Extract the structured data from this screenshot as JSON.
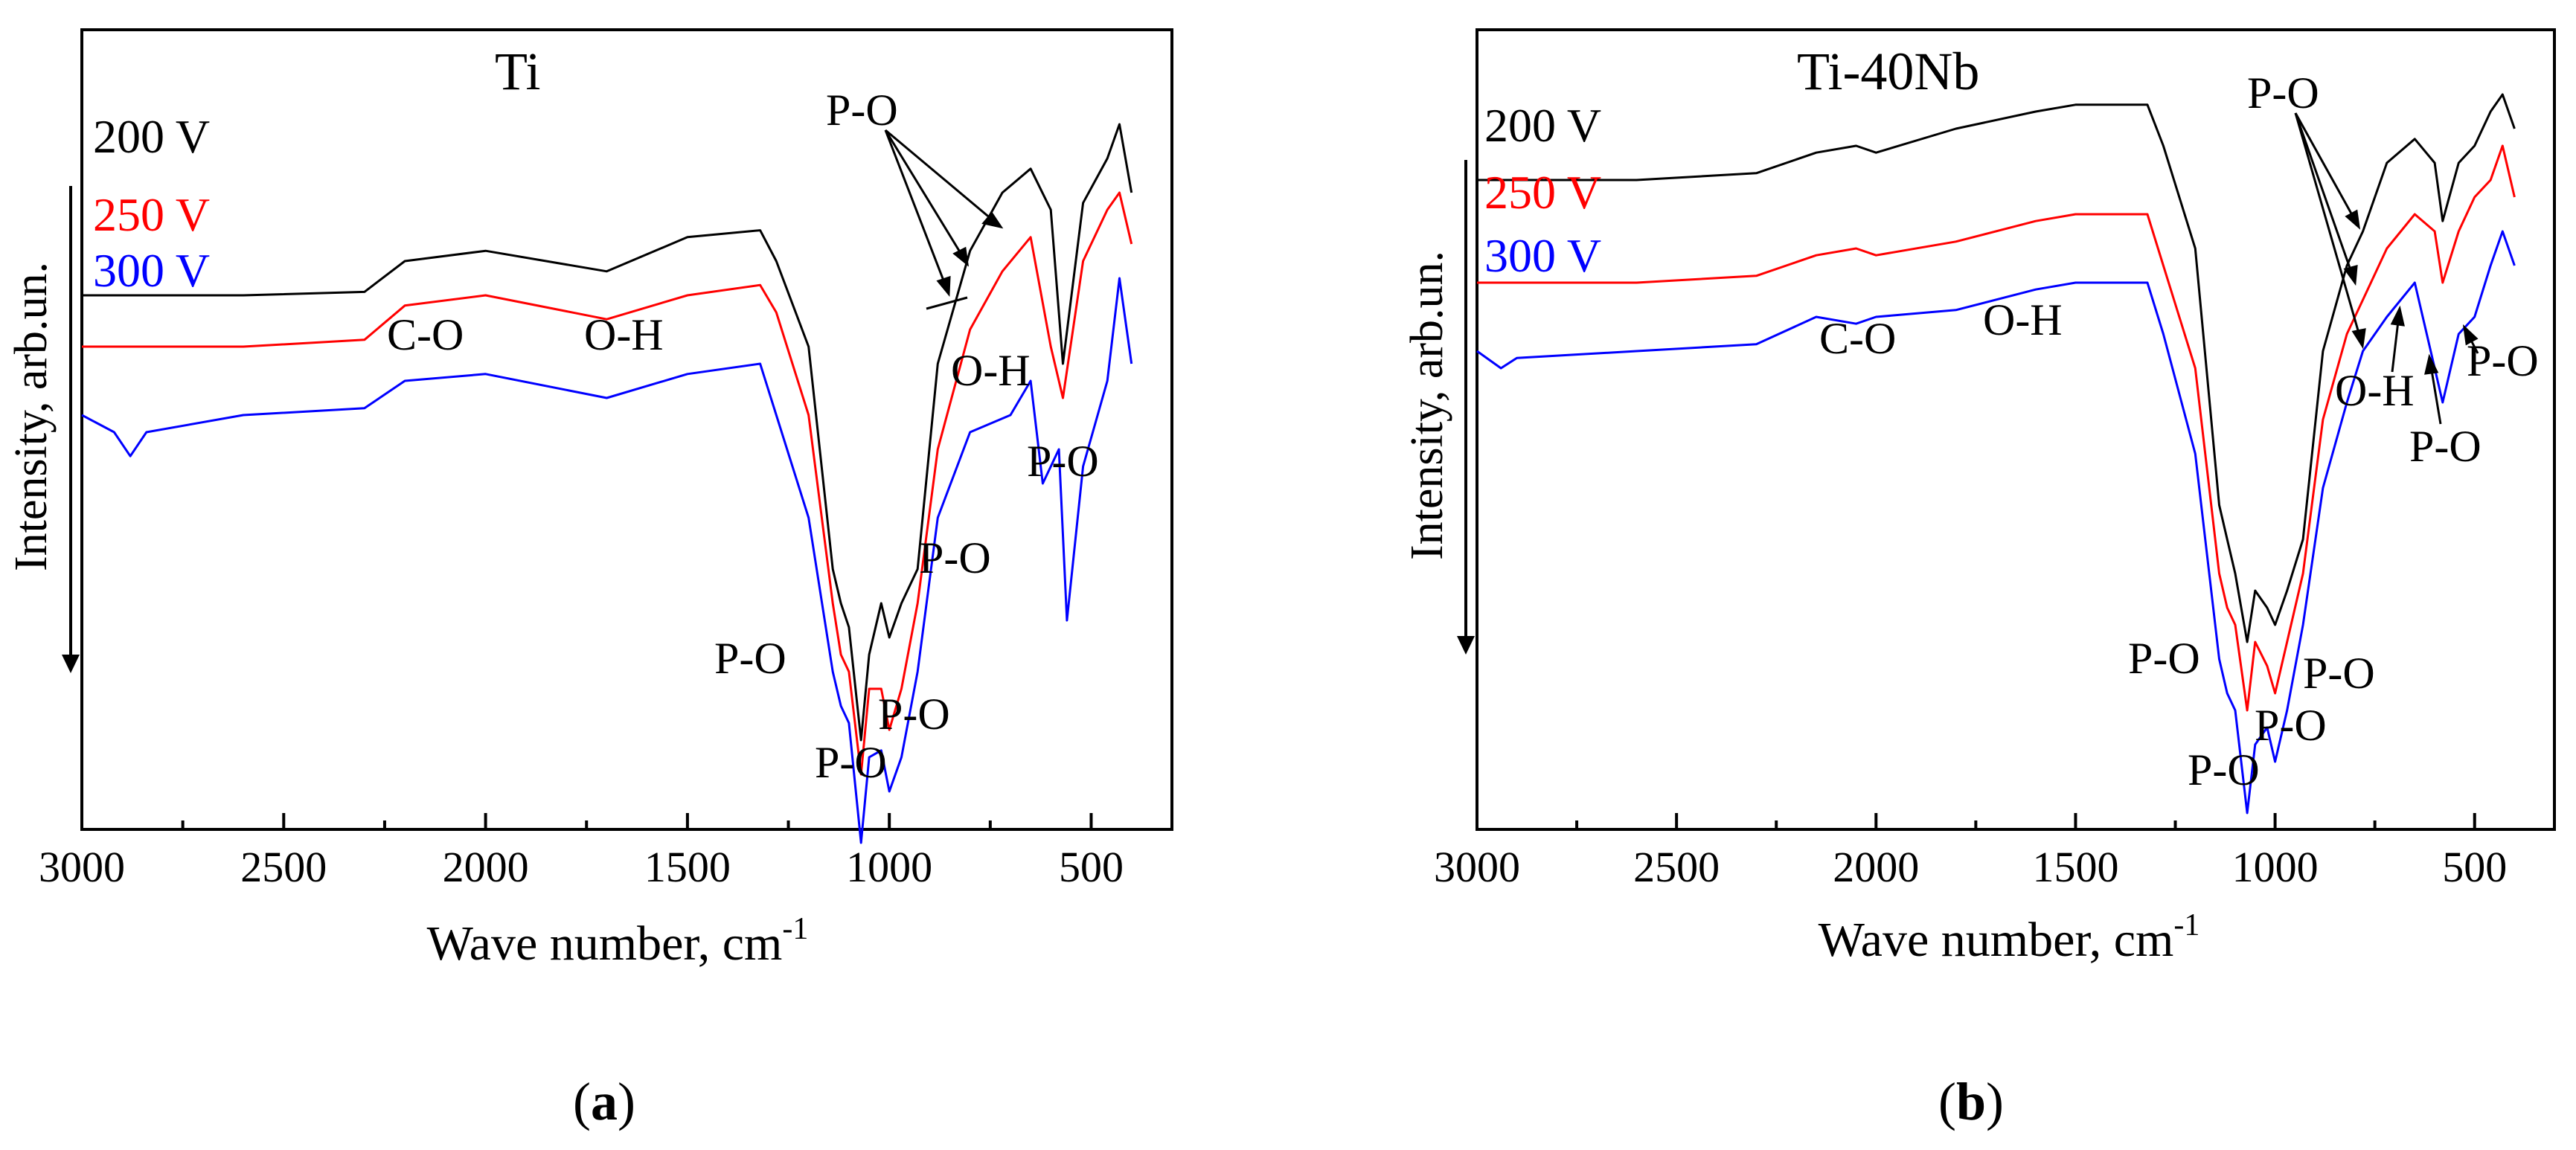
{
  "chart_data": [
    {
      "type": "line",
      "panel_label": "a",
      "title": "Ti",
      "xlabel": "Wave number, cm",
      "xlabel_sup": "-1",
      "ylabel": "Intensity, arb.un.",
      "xlim": [
        3000,
        300
      ],
      "x_ticks": [
        "3000",
        "2500",
        "2000",
        "1500",
        "1000",
        "500"
      ],
      "x_tick_values": [
        3000,
        2500,
        2000,
        1500,
        1000,
        500
      ],
      "y_ticks_shown": false,
      "y_direction_arrow": "down",
      "series": [
        {
          "name": "200 V",
          "color": "#000000",
          "x": [
            3000,
            2600,
            2300,
            2200,
            2000,
            1700,
            1500,
            1320,
            1280,
            1200,
            1140,
            1120,
            1100,
            1070,
            1050,
            1020,
            1000,
            970,
            930,
            880,
            800,
            720,
            650,
            600,
            570,
            520,
            460,
            430,
            400
          ],
          "y": [
            0.5,
            0.5,
            0.6,
            1.5,
            1.8,
            1.2,
            2.2,
            2.4,
            1.5,
            -1.0,
            -7.5,
            -8.5,
            -9.2,
            -12.5,
            -10.0,
            -8.5,
            -9.5,
            -8.5,
            -7.5,
            -1.5,
            1.8,
            3.5,
            4.2,
            3.0,
            -1.5,
            3.2,
            4.5,
            5.5,
            3.5
          ]
        },
        {
          "name": "250 V",
          "color": "#ff0000",
          "x": [
            3000,
            2600,
            2300,
            2200,
            2000,
            1700,
            1500,
            1320,
            1280,
            1200,
            1140,
            1120,
            1100,
            1070,
            1050,
            1020,
            1000,
            970,
            930,
            880,
            800,
            720,
            650,
            600,
            570,
            520,
            460,
            430,
            400
          ],
          "y": [
            -1.0,
            -1.0,
            -0.8,
            0.2,
            0.5,
            -0.2,
            0.5,
            0.8,
            0.0,
            -3.0,
            -8.5,
            -10.0,
            -10.5,
            -13.5,
            -11.0,
            -11.0,
            -12.2,
            -11.0,
            -8.5,
            -4.0,
            -0.5,
            1.2,
            2.2,
            -1.0,
            -2.5,
            1.5,
            3.0,
            3.5,
            2.0
          ]
        },
        {
          "name": "300 V",
          "color": "#0000ff",
          "x": [
            3000,
            2920,
            2880,
            2840,
            2600,
            2300,
            2200,
            2000,
            1700,
            1500,
            1320,
            1280,
            1200,
            1140,
            1120,
            1100,
            1070,
            1050,
            1020,
            1000,
            970,
            930,
            880,
            800,
            700,
            650,
            620,
            580,
            560,
            520,
            460,
            430,
            400
          ],
          "y": [
            -3.0,
            -3.5,
            -4.2,
            -3.5,
            -3.0,
            -2.8,
            -2.0,
            -1.8,
            -2.5,
            -1.8,
            -1.5,
            -3.0,
            -6.0,
            -10.5,
            -11.5,
            -12.0,
            -15.5,
            -13.0,
            -12.8,
            -14.0,
            -13.0,
            -10.5,
            -6.0,
            -3.5,
            -3.0,
            -2.0,
            -5.0,
            -4.0,
            -9.0,
            -4.5,
            -2.0,
            1.0,
            -1.5
          ]
        }
      ],
      "annotations": [
        "P-O",
        "C-O",
        "O-H",
        "O-H",
        "P-O",
        "P-O",
        "P-O",
        "P-O",
        "P-O"
      ]
    },
    {
      "type": "line",
      "panel_label": "b",
      "title": "Ti-40Nb",
      "xlabel": "Wave number, cm",
      "xlabel_sup": "-1",
      "ylabel": "Intensity, arb.un.",
      "xlim": [
        3000,
        300
      ],
      "x_ticks": [
        "3000",
        "2500",
        "2000",
        "1500",
        "1000",
        "500"
      ],
      "x_tick_values": [
        3000,
        2500,
        2000,
        1500,
        1000,
        500
      ],
      "y_ticks_shown": false,
      "y_direction_arrow": "down",
      "series": [
        {
          "name": "200 V",
          "color": "#000000",
          "x": [
            3000,
            2600,
            2300,
            2150,
            2050,
            2000,
            1800,
            1600,
            1500,
            1320,
            1280,
            1200,
            1140,
            1120,
            1100,
            1070,
            1050,
            1020,
            1000,
            970,
            930,
            880,
            820,
            780,
            720,
            650,
            600,
            580,
            540,
            500,
            460,
            430,
            400
          ],
          "y": [
            3.0,
            3.0,
            3.2,
            3.8,
            4.0,
            3.8,
            4.5,
            5.0,
            5.2,
            5.2,
            4.0,
            1.0,
            -6.5,
            -7.5,
            -8.5,
            -10.5,
            -9.0,
            -9.5,
            -10.0,
            -9.0,
            -7.5,
            -2.0,
            0.5,
            1.5,
            3.5,
            4.2,
            3.5,
            1.8,
            3.5,
            4.0,
            5.0,
            5.5,
            4.5
          ]
        },
        {
          "name": "250 V",
          "color": "#ff0000",
          "x": [
            3000,
            2600,
            2300,
            2150,
            2050,
            2000,
            1800,
            1600,
            1500,
            1320,
            1280,
            1200,
            1140,
            1120,
            1100,
            1070,
            1050,
            1020,
            1000,
            970,
            930,
            880,
            820,
            780,
            720,
            650,
            600,
            580,
            540,
            500,
            460,
            430,
            400
          ],
          "y": [
            0.0,
            0.0,
            0.2,
            0.8,
            1.0,
            0.8,
            1.2,
            1.8,
            2.0,
            2.0,
            0.5,
            -2.5,
            -8.5,
            -9.5,
            -10.0,
            -12.5,
            -10.5,
            -11.2,
            -12.0,
            -10.5,
            -8.5,
            -4.0,
            -1.5,
            -0.5,
            1.0,
            2.0,
            1.5,
            0.0,
            1.5,
            2.5,
            3.0,
            4.0,
            2.5
          ]
        },
        {
          "name": "300 V",
          "color": "#0000ff",
          "x": [
            3000,
            2940,
            2900,
            2600,
            2300,
            2150,
            2050,
            2000,
            1800,
            1600,
            1500,
            1320,
            1280,
            1200,
            1140,
            1120,
            1100,
            1070,
            1050,
            1020,
            1000,
            970,
            930,
            880,
            820,
            780,
            720,
            650,
            620,
            580,
            540,
            500,
            460,
            430,
            400
          ],
          "y": [
            -2.0,
            -2.5,
            -2.2,
            -2.0,
            -1.8,
            -1.0,
            -1.2,
            -1.0,
            -0.8,
            -0.2,
            0.0,
            0.0,
            -1.5,
            -5.0,
            -11.0,
            -12.0,
            -12.5,
            -15.5,
            -13.5,
            -13.0,
            -14.0,
            -12.5,
            -10.0,
            -6.0,
            -3.5,
            -2.0,
            -1.0,
            0.0,
            -1.5,
            -3.5,
            -1.5,
            -1.0,
            0.5,
            1.5,
            0.5
          ]
        }
      ],
      "annotations": [
        "P-O",
        "C-O",
        "O-H",
        "O-H",
        "P-O",
        "P-O",
        "P-O",
        "P-O",
        "P-O",
        "P-O"
      ]
    }
  ]
}
